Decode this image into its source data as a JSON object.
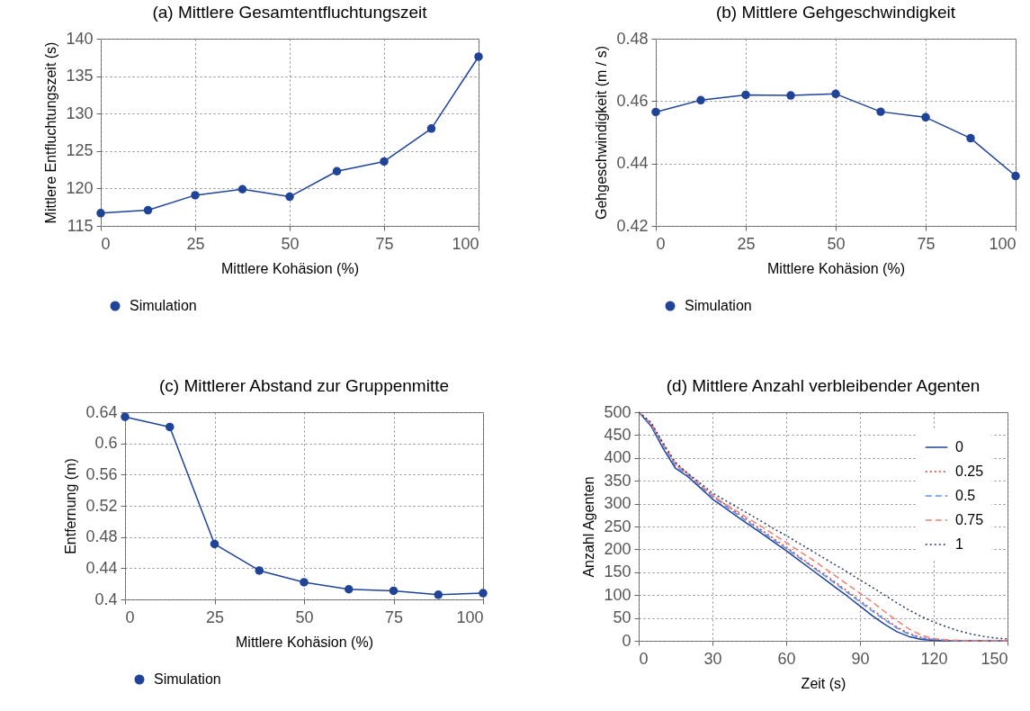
{
  "chart_data": [
    {
      "type": "line",
      "title": "(a) Mittlere Gesamtentfluchtungszeit",
      "xlabel": "Mittlere Kohäsion (%)",
      "ylabel": "Mittlere Entfluchtungszeit (s)",
      "x": [
        0,
        12.5,
        25,
        37.5,
        50,
        62.5,
        75,
        87.5,
        100
      ],
      "series": [
        {
          "name": "Simulation",
          "color": "#1f4397",
          "values": [
            116.7,
            117.1,
            119.1,
            119.9,
            118.9,
            122.3,
            123.6,
            128,
            137.6
          ]
        }
      ],
      "xlim": [
        0,
        100
      ],
      "xticks": [
        0,
        25,
        50,
        75,
        100
      ],
      "ylim": [
        115,
        140
      ],
      "yticks": [
        115,
        120,
        125,
        130,
        135,
        140
      ],
      "grid": true,
      "legend": "bottom",
      "marker": "circle"
    },
    {
      "type": "line",
      "title": "(b) Mittlere Gehgeschwindigkeit",
      "xlabel": "Mittlere Kohäsion (%)",
      "ylabel": "Gehgeschwindigkeit (m / s)",
      "x": [
        0,
        12.5,
        25,
        37.5,
        50,
        62.5,
        75,
        87.5,
        100
      ],
      "series": [
        {
          "name": "Simulation",
          "color": "#1f4397",
          "values": [
            0.4565,
            0.4603,
            0.462,
            0.4618,
            0.4623,
            0.4566,
            0.4548,
            0.4481,
            0.436
          ]
        }
      ],
      "xlim": [
        0,
        100
      ],
      "xticks": [
        0,
        25,
        50,
        75,
        100
      ],
      "ylim": [
        0.42,
        0.48
      ],
      "yticks": [
        0.42,
        0.44,
        0.46,
        0.48
      ],
      "grid": true,
      "legend": "bottom",
      "marker": "circle"
    },
    {
      "type": "line",
      "title": "(c) Mittlerer Abstand zur Gruppenmitte",
      "xlabel": "Mittlere Kohäsion (%)",
      "ylabel": "Entfernung (m)",
      "x": [
        0,
        12.5,
        25,
        37.5,
        50,
        62.5,
        75,
        87.5,
        100
      ],
      "series": [
        {
          "name": "Simulation",
          "color": "#1f4397",
          "values": [
            0.634,
            0.621,
            0.471,
            0.437,
            0.422,
            0.413,
            0.411,
            0.406,
            0.408
          ]
        }
      ],
      "xlim": [
        0,
        100
      ],
      "xticks": [
        0,
        25,
        50,
        75,
        100
      ],
      "ylim": [
        0.4,
        0.64
      ],
      "yticks": [
        0.4,
        0.44,
        0.48,
        0.52,
        0.56,
        0.6,
        0.64
      ],
      "grid": true,
      "legend": "bottom",
      "marker": "circle"
    },
    {
      "type": "line",
      "title": "(d) Mittlere Anzahl verbleibender Agenten",
      "xlabel": "Zeit (s)",
      "ylabel": "Anzahl Agenten",
      "x": [
        0,
        5,
        10,
        15,
        20,
        25,
        30,
        35,
        40,
        45,
        50,
        55,
        60,
        65,
        70,
        75,
        80,
        85,
        90,
        95,
        100,
        105,
        110,
        115,
        120,
        125,
        130,
        135,
        140,
        145,
        150
      ],
      "series": [
        {
          "name": "0",
          "color": "#1f4397",
          "line_style": "solid",
          "values": [
            500,
            470,
            420,
            377,
            359,
            335,
            310,
            291,
            272,
            253,
            235,
            216,
            197,
            177,
            157,
            137,
            117,
            97,
            76,
            55,
            36,
            20,
            9,
            3,
            1,
            0,
            0,
            0,
            0,
            0,
            0
          ]
        },
        {
          "name": "0.25",
          "color": "#e8322b",
          "line_style": "dotted",
          "values": [
            500,
            475,
            428,
            385,
            365,
            340,
            318,
            299,
            280,
            261,
            242,
            223,
            205,
            185,
            166,
            147,
            128,
            108,
            88,
            68,
            48,
            30,
            16,
            7,
            3,
            1,
            0,
            0,
            0,
            0,
            0
          ]
        },
        {
          "name": "0.5",
          "color": "#5b8ff0",
          "line_style": "dashed",
          "values": [
            500,
            473,
            425,
            382,
            362,
            338,
            315,
            296,
            277,
            258,
            239,
            220,
            202,
            183,
            164,
            145,
            125,
            105,
            85,
            65,
            46,
            28,
            14,
            6,
            3,
            1,
            0,
            0,
            0,
            0,
            0
          ]
        },
        {
          "name": "0.75",
          "color": "#f08070",
          "line_style": "dashed",
          "values": [
            500,
            476,
            430,
            387,
            366,
            341,
            318,
            300,
            283,
            266,
            250,
            232,
            215,
            197,
            180,
            161,
            142,
            123,
            104,
            85,
            64,
            44,
            26,
            12,
            5,
            2,
            1,
            0,
            0,
            0,
            0
          ]
        },
        {
          "name": "1",
          "color": "#2a3a66",
          "line_style": "dotted",
          "values": [
            500,
            478,
            432,
            390,
            366,
            345,
            323,
            308,
            292,
            277,
            261,
            245,
            230,
            214,
            198,
            182,
            166,
            150,
            133,
            117,
            100,
            83,
            67,
            53,
            41,
            31,
            22,
            15,
            10,
            6,
            4
          ]
        }
      ],
      "xlim": [
        0,
        150
      ],
      "xticks": [
        0,
        30,
        60,
        90,
        120,
        150
      ],
      "ylim": [
        0,
        500
      ],
      "yticks": [
        0,
        50,
        100,
        150,
        200,
        250,
        300,
        350,
        400,
        450,
        500
      ],
      "grid": true,
      "legend": "top right",
      "marker": "none"
    }
  ]
}
